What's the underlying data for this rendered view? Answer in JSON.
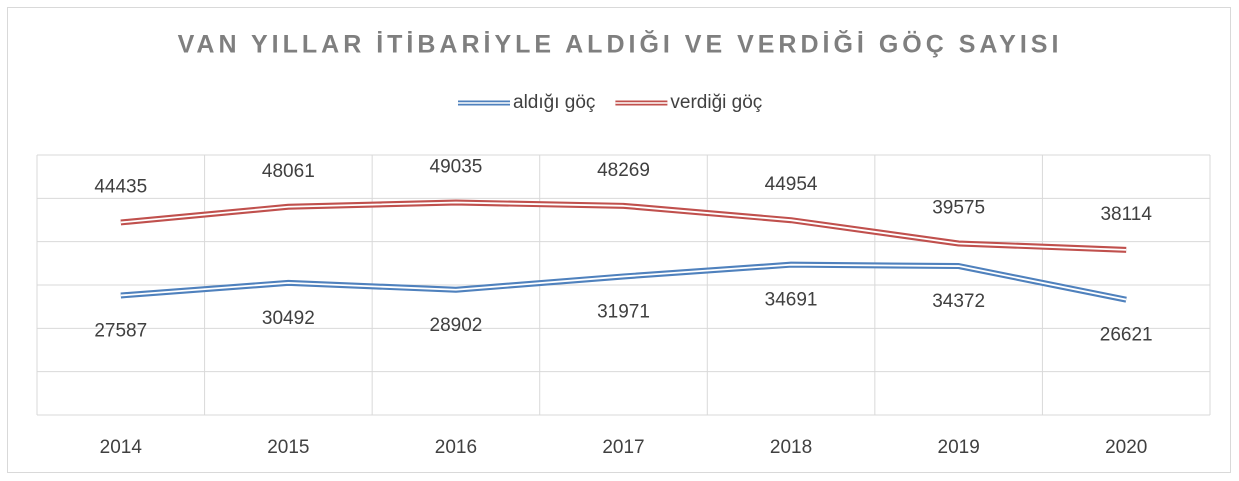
{
  "chart_data": {
    "type": "line",
    "title": "VAN YILLAR İTİBARİYLE ALDIĞI VE VERDİĞİ GÖÇ SAYISI",
    "categories": [
      "2014",
      "2015",
      "2016",
      "2017",
      "2018",
      "2019",
      "2020"
    ],
    "series": [
      {
        "name": "aldığı göç",
        "color": "#4f81bd",
        "values": [
          27587,
          30492,
          28902,
          31971,
          34691,
          34372,
          26621
        ]
      },
      {
        "name": "verdiği göç",
        "color": "#c0504d",
        "values": [
          44435,
          48061,
          49035,
          48269,
          44954,
          39575,
          38114
        ]
      }
    ],
    "ylim": [
      0,
      60000
    ],
    "yticks": [
      0,
      10000,
      20000,
      30000,
      40000,
      50000,
      60000
    ],
    "grid": true,
    "legend": "top"
  }
}
